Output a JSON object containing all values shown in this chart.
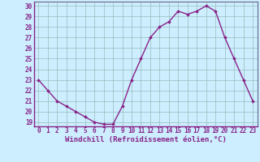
{
  "hours": [
    0,
    1,
    2,
    3,
    4,
    5,
    6,
    7,
    8,
    9,
    10,
    11,
    12,
    13,
    14,
    15,
    16,
    17,
    18,
    19,
    20,
    21,
    22,
    23
  ],
  "values": [
    23.0,
    22.0,
    21.0,
    20.5,
    20.0,
    19.5,
    19.0,
    18.8,
    18.8,
    20.5,
    23.0,
    25.0,
    27.0,
    28.0,
    28.5,
    29.5,
    29.2,
    29.5,
    30.0,
    29.5,
    27.0,
    25.0,
    23.0,
    21.0
  ],
  "line_color": "#882288",
  "marker": "D",
  "marker_size": 1.8,
  "bg_color": "#cceeff",
  "grid_color": "#99bbbb",
  "xlabel": "Windchill (Refroidissement éolien,°C)",
  "xlabel_color": "#882288",
  "tick_color": "#882288",
  "ylabel_ticks": [
    19,
    20,
    21,
    22,
    23,
    24,
    25,
    26,
    27,
    28,
    29,
    30
  ],
  "ylim": [
    18.6,
    30.4
  ],
  "xlim": [
    -0.5,
    23.5
  ],
  "xtick_labels": [
    "0",
    "1",
    "2",
    "3",
    "4",
    "5",
    "6",
    "7",
    "8",
    "9",
    "10",
    "11",
    "12",
    "13",
    "14",
    "15",
    "16",
    "17",
    "18",
    "19",
    "20",
    "21",
    "22",
    "23"
  ],
  "spine_color": "#666688",
  "linewidth": 1.0,
  "font_size_ticks": 5.5,
  "font_size_xlabel": 6.5
}
